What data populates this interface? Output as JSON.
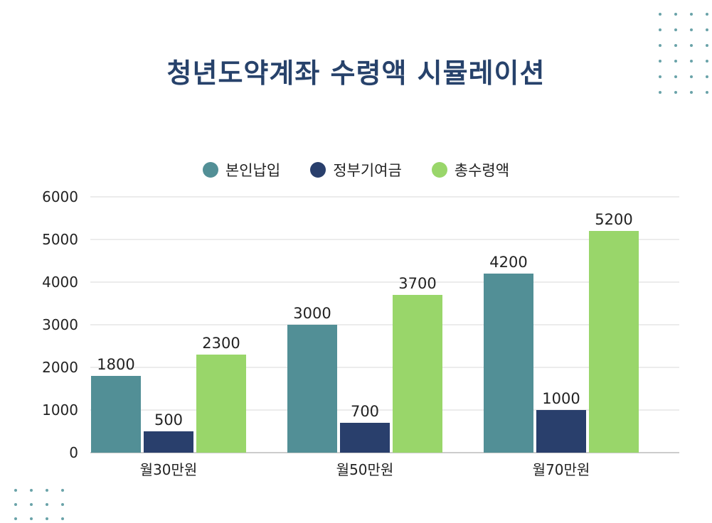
{
  "chart_data": {
    "type": "bar",
    "title": "청년도약계좌 수령액 시뮬레이션",
    "categories": [
      "월30만원",
      "월50만원",
      "월70만원"
    ],
    "series": [
      {
        "name": "본인납입",
        "color": "#528f96",
        "values": [
          1800,
          3000,
          4200
        ]
      },
      {
        "name": "정부기여금",
        "color": "#293f6c",
        "values": [
          500,
          700,
          1000
        ]
      },
      {
        "name": "총수령액",
        "color": "#99d66a",
        "values": [
          2300,
          3700,
          5200
        ]
      }
    ],
    "ylim": [
      0,
      6000
    ],
    "yticks": [
      0,
      1000,
      2000,
      3000,
      4000,
      5000,
      6000
    ],
    "grid": true,
    "legend_position": "top-center",
    "xlabel": "",
    "ylabel": ""
  }
}
